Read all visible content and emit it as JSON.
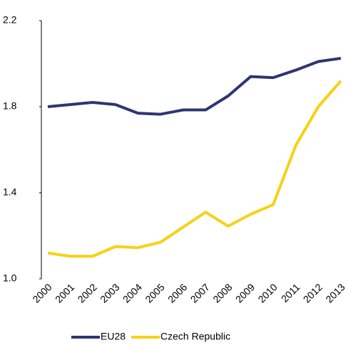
{
  "chart_data": {
    "type": "line",
    "categories": [
      "2000",
      "2001",
      "2002",
      "2003",
      "2004",
      "2005",
      "2006",
      "2007",
      "2008",
      "2009",
      "2010",
      "2011",
      "2012",
      "2013"
    ],
    "series": [
      {
        "name": "EU28",
        "color": "#2e3572",
        "values": [
          1.8,
          1.81,
          1.82,
          1.81,
          1.77,
          1.765,
          1.785,
          1.785,
          1.85,
          1.94,
          1.935,
          1.97,
          2.01,
          2.025
        ]
      },
      {
        "name": "Czech Republic",
        "color": "#f7d117",
        "values": [
          1.12,
          1.105,
          1.105,
          1.15,
          1.145,
          1.17,
          1.24,
          1.31,
          1.245,
          1.3,
          1.345,
          1.62,
          1.8,
          1.92
        ]
      }
    ],
    "ylim": [
      1.0,
      2.2
    ],
    "yticks": [
      {
        "value": 1,
        "label": "1.0"
      },
      1.4,
      1.8,
      2.2
    ],
    "grid": false,
    "legend": "bottom"
  }
}
